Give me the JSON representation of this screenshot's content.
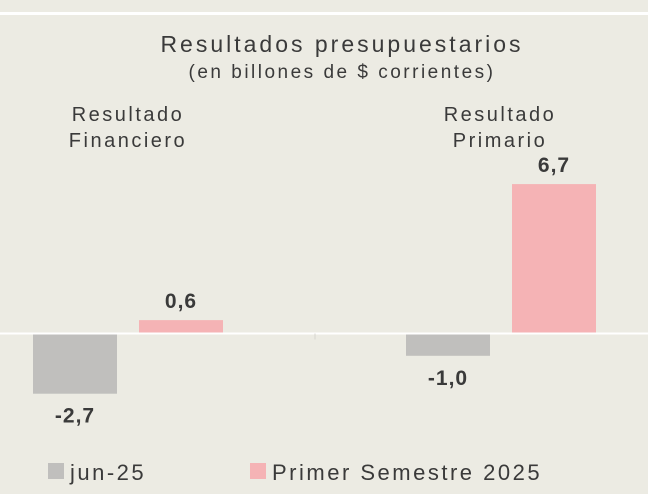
{
  "chart_data": {
    "type": "bar",
    "title": "Resultados presupuestarios",
    "subtitle": "(en billones de $ corrientes)",
    "categories": [
      "Resultado Financiero",
      "Resultado Primario"
    ],
    "category_label_lines": [
      [
        "Resultado",
        "Financiero"
      ],
      [
        "Resultado",
        "Primario"
      ]
    ],
    "series": [
      {
        "name": "jun-25",
        "values": [
          -2.7,
          -1.0
        ],
        "labels": [
          "-2,7",
          "-1,0"
        ],
        "color": "#c0bfbd"
      },
      {
        "name": "Primer Semestre 2025",
        "values": [
          0.6,
          6.7
        ],
        "labels": [
          "0,6",
          "6,7"
        ],
        "color": "#f5b3b5"
      }
    ],
    "ylim": [
      -3.2,
      7.2
    ],
    "grid": false,
    "legend_position": "bottom",
    "colors": {
      "background": "#ecebe3",
      "zero_line": "#ffffff",
      "text": "#3a3a3a"
    }
  }
}
